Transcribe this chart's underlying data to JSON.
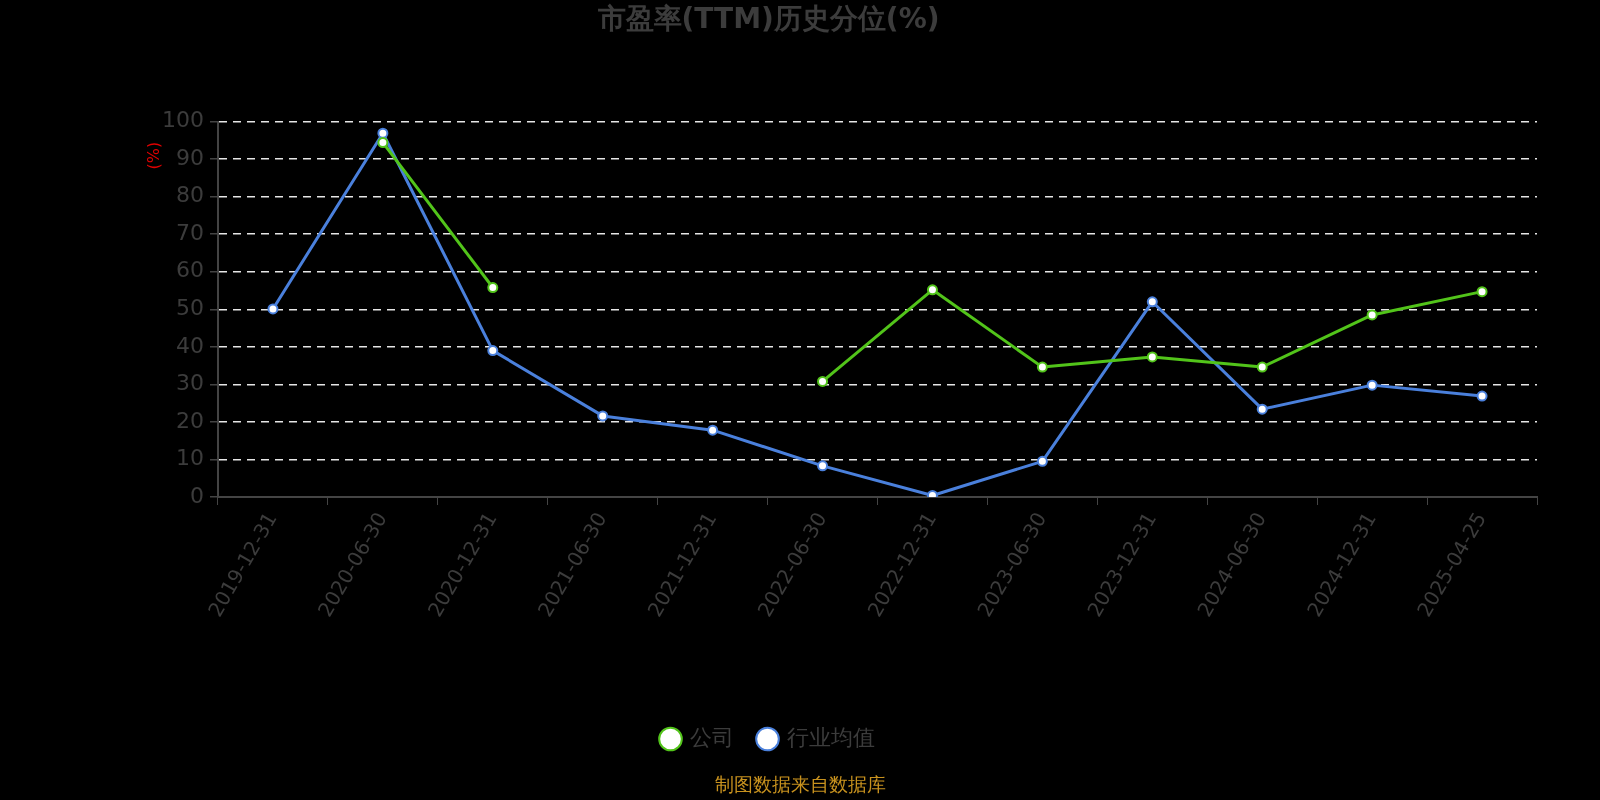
{
  "chart_data": {
    "type": "line",
    "title": "市盈率(TTM)历史分位(%)",
    "ylabel": "(%)",
    "annotations": [
      "制图数据来自数据库"
    ],
    "categories": [
      "2019-12-31",
      "2020-06-30",
      "2020-12-31",
      "2021-06-30",
      "2021-12-31",
      "2022-06-30",
      "2022-12-31",
      "2023-06-30",
      "2023-12-31",
      "2024-06-30",
      "2024-12-31",
      "2025-04-25"
    ],
    "series": [
      {
        "name": "公司",
        "color": "#52c41a",
        "values": [
          null,
          94.4,
          55.8,
          null,
          null,
          30.8,
          55.2,
          34.6,
          37.3,
          34.6,
          48.5,
          54.7
        ]
      },
      {
        "name": "行业均值",
        "color": "#4a80dc",
        "values": [
          50.1,
          96.9,
          39.0,
          21.6,
          17.8,
          8.3,
          0.4,
          9.5,
          52.0,
          23.4,
          29.8,
          26.9
        ]
      }
    ],
    "ylim": [
      0,
      100
    ],
    "yticks": [
      0,
      10,
      20,
      30,
      40,
      50,
      60,
      70,
      80,
      90,
      100
    ],
    "grid": "y",
    "legend": "bottom",
    "marker": "circle",
    "line_style": "solid"
  }
}
